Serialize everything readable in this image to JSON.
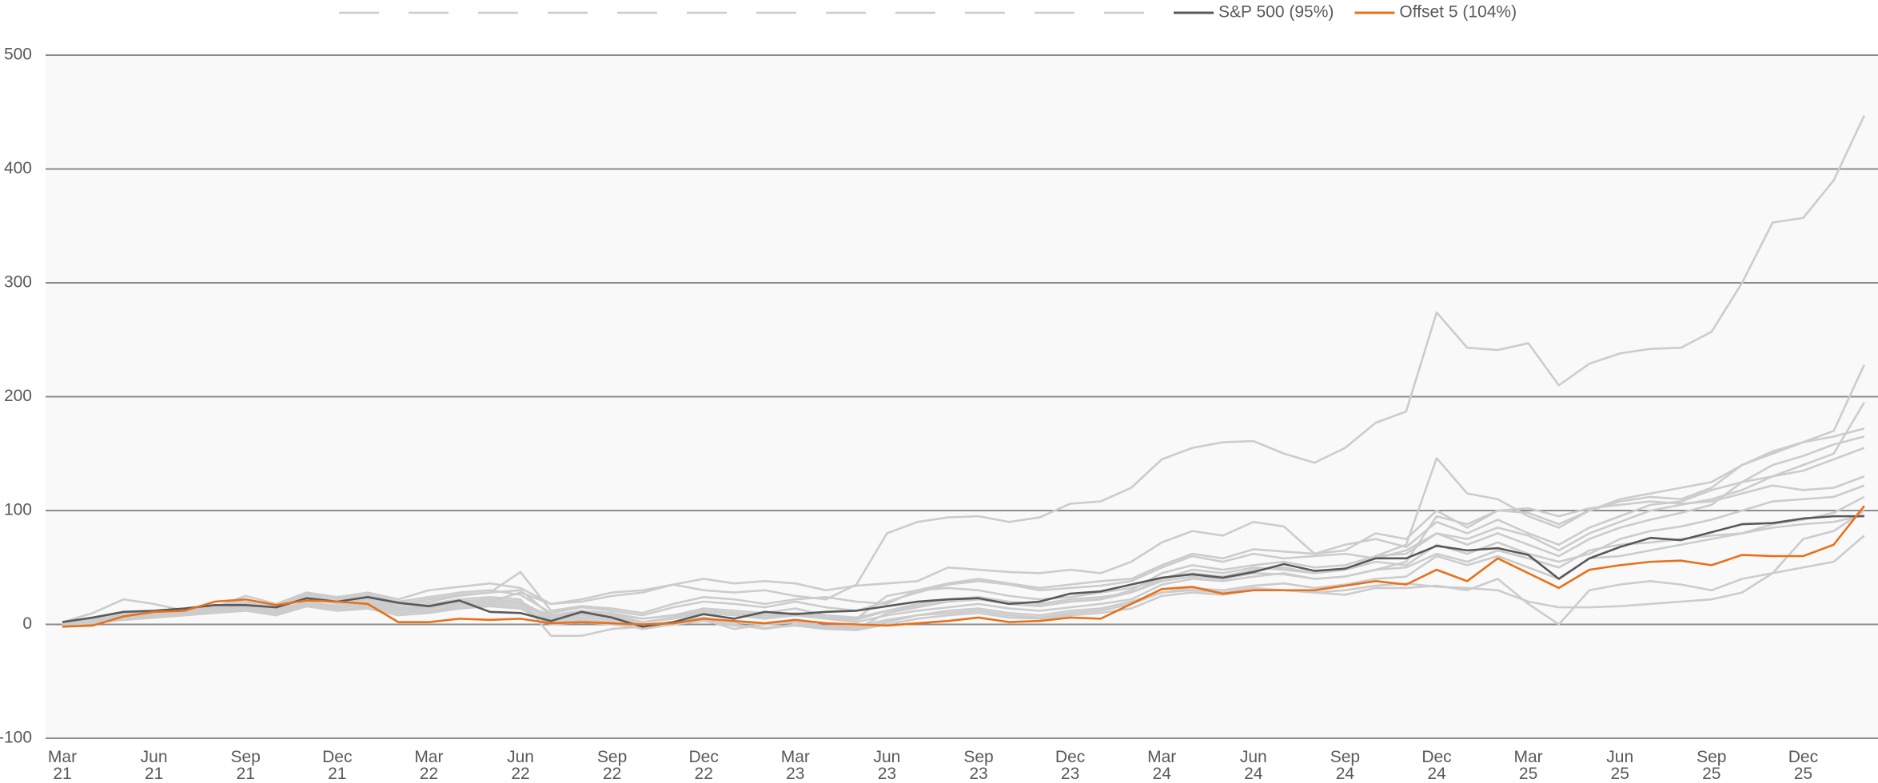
{
  "chart_data": {
    "type": "line",
    "categories": [
      "Mar 21",
      null,
      null,
      "Jun 21",
      null,
      null,
      "Sep 21",
      null,
      null,
      "Dec 21",
      null,
      null,
      "Mar 22",
      null,
      null,
      "Jun 22",
      null,
      null,
      "Sep 22",
      null,
      null,
      "Dec 22",
      null,
      null,
      "Mar 23",
      null,
      null,
      "Jun 23",
      null,
      null,
      "Sep 23",
      null,
      null,
      "Dec 23",
      null,
      null,
      "Mar 24",
      null,
      null,
      "Jun 24",
      null,
      null,
      "Sep 24",
      null,
      null,
      "Dec 24",
      null,
      null,
      "Mar 25",
      null,
      null,
      "Jun 25",
      null,
      null,
      "Sep 25",
      null,
      null,
      "Dec 25",
      null,
      null
    ],
    "ylim": [
      -100,
      500
    ],
    "yticks": [
      -100,
      0,
      100,
      200,
      300,
      400,
      500
    ],
    "grid": true,
    "series": [
      {
        "color": "#cccccc",
        "legend_dash": true,
        "values": [
          2,
          10,
          22,
          18,
          12,
          15,
          25,
          18,
          28,
          24,
          25,
          14,
          10,
          18,
          20,
          28,
          18,
          20,
          25,
          28,
          35,
          30,
          28,
          30,
          25,
          22,
          35,
          80,
          90,
          94,
          95,
          90,
          94,
          106,
          108,
          120,
          145,
          155,
          160,
          161,
          150,
          142,
          155,
          177,
          187,
          274,
          243,
          241,
          247,
          210,
          229,
          238,
          242,
          243,
          257,
          300,
          353,
          357,
          390,
          447
        ]
      },
      {
        "color": "#cccccc",
        "legend_dash": true,
        "values": [
          0,
          3,
          6,
          8,
          10,
          14,
          18,
          12,
          24,
          18,
          22,
          16,
          20,
          25,
          28,
          30,
          8,
          12,
          10,
          5,
          8,
          14,
          12,
          10,
          14,
          8,
          5,
          25,
          30,
          32,
          30,
          25,
          22,
          24,
          28,
          32,
          40,
          45,
          42,
          48,
          50,
          45,
          48,
          60,
          70,
          146,
          115,
          110,
          95,
          85,
          100,
          110,
          115,
          120,
          125,
          140,
          150,
          160,
          170,
          228
        ]
      },
      {
        "color": "#cccccc",
        "legend_dash": true,
        "values": [
          0,
          4,
          8,
          10,
          12,
          15,
          20,
          14,
          28,
          22,
          26,
          20,
          24,
          28,
          30,
          26,
          10,
          15,
          12,
          8,
          15,
          20,
          18,
          15,
          20,
          15,
          12,
          20,
          28,
          35,
          38,
          35,
          30,
          32,
          34,
          38,
          50,
          60,
          55,
          62,
          58,
          60,
          62,
          58,
          65,
          80,
          75,
          85,
          78,
          65,
          80,
          90,
          100,
          105,
          110,
          118,
          130,
          140,
          150,
          195
        ]
      },
      {
        "color": "#cccccc",
        "legend_dash": true,
        "values": [
          1,
          5,
          9,
          11,
          13,
          16,
          22,
          16,
          26,
          24,
          28,
          22,
          30,
          33,
          36,
          32,
          18,
          22,
          28,
          30,
          35,
          40,
          36,
          38,
          36,
          30,
          34,
          36,
          38,
          50,
          48,
          46,
          45,
          48,
          45,
          55,
          72,
          82,
          78,
          90,
          86,
          62,
          65,
          80,
          75,
          100,
          85,
          100,
          98,
          88,
          100,
          108,
          112,
          110,
          120,
          140,
          152,
          160,
          165,
          172
        ]
      },
      {
        "color": "#cccccc",
        "legend_dash": true,
        "values": [
          0,
          3,
          7,
          9,
          11,
          14,
          19,
          13,
          26,
          20,
          24,
          18,
          22,
          26,
          28,
          46,
          12,
          16,
          14,
          10,
          18,
          24,
          22,
          18,
          22,
          24,
          20,
          18,
          30,
          36,
          40,
          36,
          32,
          35,
          38,
          40,
          52,
          62,
          58,
          66,
          64,
          62,
          70,
          75,
          68,
          90,
          80,
          92,
          80,
          70,
          85,
          95,
          105,
          108,
          118,
          125,
          140,
          148,
          158,
          165
        ]
      },
      {
        "color": "#cccccc",
        "legend_dash": true,
        "values": [
          -2,
          2,
          6,
          8,
          10,
          12,
          16,
          10,
          20,
          16,
          20,
          14,
          18,
          22,
          24,
          22,
          -10,
          -10,
          -4,
          -2,
          0,
          4,
          -4,
          0,
          4,
          -2,
          -4,
          10,
          15,
          20,
          22,
          18,
          16,
          20,
          22,
          30,
          45,
          52,
          48,
          52,
          55,
          50,
          52,
          60,
          62,
          80,
          70,
          80,
          70,
          60,
          75,
          85,
          92,
          98,
          105,
          125,
          130,
          135,
          145,
          155
        ]
      },
      {
        "color": "#cccccc",
        "legend_dash": true,
        "values": [
          0,
          2,
          5,
          7,
          9,
          12,
          14,
          10,
          18,
          14,
          18,
          12,
          14,
          18,
          20,
          18,
          5,
          8,
          6,
          2,
          5,
          10,
          8,
          5,
          8,
          5,
          2,
          8,
          12,
          15,
          18,
          14,
          12,
          15,
          18,
          22,
          35,
          40,
          38,
          42,
          45,
          40,
          42,
          48,
          55,
          95,
          88,
          100,
          102,
          95,
          102,
          105,
          108,
          106,
          108,
          115,
          122,
          118,
          120,
          130
        ]
      },
      {
        "color": "#cccccc",
        "legend_dash": true,
        "values": [
          1,
          4,
          8,
          10,
          12,
          14,
          18,
          12,
          20,
          16,
          20,
          14,
          16,
          20,
          22,
          20,
          6,
          10,
          8,
          2,
          6,
          12,
          10,
          6,
          10,
          6,
          4,
          12,
          18,
          22,
          24,
          20,
          18,
          22,
          24,
          28,
          40,
          48,
          45,
          50,
          48,
          45,
          48,
          55,
          52,
          70,
          62,
          72,
          62,
          55,
          62,
          75,
          82,
          86,
          92,
          100,
          108,
          110,
          112,
          122
        ]
      },
      {
        "color": "#cccccc",
        "legend_dash": true,
        "values": [
          0,
          1,
          4,
          6,
          8,
          10,
          12,
          8,
          16,
          12,
          16,
          10,
          12,
          16,
          18,
          16,
          2,
          4,
          2,
          -4,
          0,
          4,
          0,
          -4,
          0,
          -2,
          -4,
          2,
          8,
          10,
          12,
          8,
          6,
          10,
          12,
          18,
          28,
          32,
          30,
          34,
          36,
          32,
          35,
          40,
          42,
          60,
          52,
          60,
          50,
          40,
          58,
          60,
          65,
          70,
          75,
          80,
          88,
          92,
          98,
          112
        ]
      },
      {
        "color": "#cccccc",
        "legend_dash": true,
        "values": [
          -1,
          2,
          5,
          7,
          9,
          11,
          14,
          9,
          16,
          12,
          16,
          10,
          12,
          14,
          16,
          14,
          0,
          2,
          0,
          -3,
          0,
          3,
          -1,
          -3,
          -1,
          -4,
          -5,
          0,
          5,
          8,
          10,
          6,
          5,
          8,
          10,
          14,
          25,
          28,
          26,
          30,
          30,
          28,
          30,
          34,
          36,
          33,
          32,
          30,
          20,
          15,
          15,
          16,
          18,
          20,
          22,
          28,
          45,
          75,
          82,
          100
        ]
      },
      {
        "color": "#cccccc",
        "legend_dash": true,
        "values": [
          0,
          2,
          4,
          6,
          8,
          12,
          14,
          8,
          16,
          12,
          14,
          8,
          10,
          14,
          16,
          14,
          4,
          6,
          4,
          0,
          2,
          6,
          2,
          0,
          2,
          -2,
          -2,
          4,
          8,
          12,
          14,
          10,
          8,
          12,
          14,
          20,
          28,
          30,
          28,
          32,
          30,
          28,
          26,
          32,
          32,
          34,
          30,
          40,
          18,
          0,
          30,
          35,
          38,
          35,
          30,
          40,
          45,
          50,
          55,
          78
        ]
      },
      {
        "color": "#cccccc",
        "legend_dash": true,
        "values": [
          0,
          3,
          6,
          8,
          10,
          13,
          16,
          10,
          18,
          15,
          18,
          12,
          15,
          18,
          20,
          18,
          8,
          10,
          8,
          5,
          8,
          12,
          10,
          8,
          10,
          8,
          6,
          12,
          16,
          20,
          22,
          18,
          16,
          20,
          22,
          28,
          38,
          42,
          40,
          45,
          44,
          40,
          42,
          48,
          50,
          62,
          55,
          65,
          58,
          50,
          65,
          70,
          72,
          75,
          78,
          80,
          85,
          88,
          90,
          96
        ]
      },
      {
        "name": "S&P 500 (95%)",
        "color": "#595959",
        "values": [
          2,
          6,
          11,
          12,
          14,
          17,
          17,
          15,
          23,
          20,
          24,
          19,
          16,
          21,
          11,
          10,
          3,
          11,
          6,
          -2,
          2,
          9,
          5,
          11,
          9,
          11,
          12,
          16,
          20,
          22,
          23,
          18,
          20,
          27,
          29,
          35,
          41,
          44,
          41,
          46,
          53,
          47,
          49,
          58,
          58,
          69,
          65,
          67,
          61,
          40,
          58,
          68,
          76,
          74,
          81,
          88,
          89,
          93,
          95,
          95
        ]
      },
      {
        "name": "Offset 5 (104%)",
        "color": "#e8701a",
        "values": [
          -2,
          -1,
          7,
          11,
          12,
          20,
          22,
          17,
          21,
          20,
          18,
          2,
          2,
          5,
          4,
          5,
          1,
          2,
          1,
          0,
          1,
          5,
          3,
          1,
          4,
          1,
          0,
          -1,
          1,
          3,
          6,
          2,
          3,
          6,
          5,
          18,
          31,
          33,
          27,
          30,
          30,
          30,
          34,
          38,
          35,
          48,
          38,
          58,
          45,
          32,
          48,
          52,
          55,
          56,
          52,
          61,
          60,
          60,
          70,
          104
        ]
      }
    ]
  }
}
